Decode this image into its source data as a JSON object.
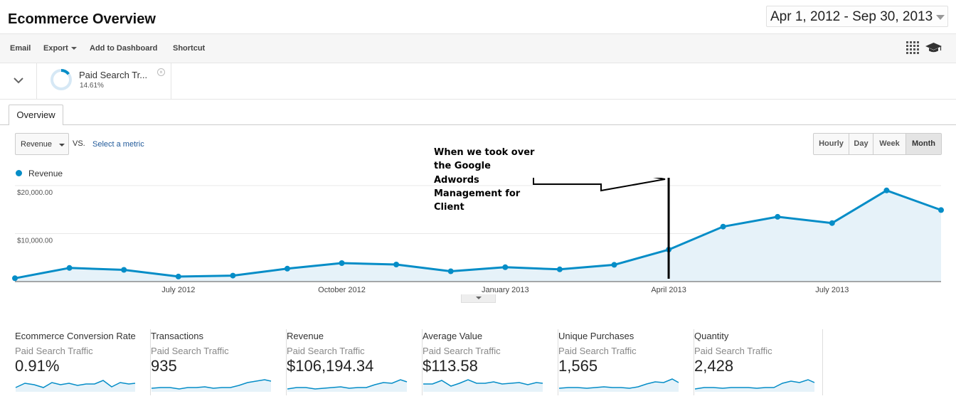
{
  "header": {
    "title": "Ecommerce Overview",
    "date_range": "Apr 1, 2012 - Sep 30, 2013"
  },
  "toolbar": {
    "email": "Email",
    "export": "Export",
    "add_to_dashboard": "Add to Dashboard",
    "shortcut": "Shortcut"
  },
  "segment": {
    "label": "Paid Search Tr...",
    "percent": "14.61%",
    "fraction": 0.1461
  },
  "tabs": {
    "overview": "Overview"
  },
  "controls": {
    "metric": "Revenue",
    "vs": "VS.",
    "select_metric": "Select a metric",
    "periods": [
      "Hourly",
      "Day",
      "Week",
      "Month"
    ],
    "active_period": "Month"
  },
  "annotation": {
    "lines": [
      "When we took over",
      "the Google",
      "Adwords",
      "Management for",
      "Client"
    ]
  },
  "colors": {
    "series": "#058dc7",
    "area": "#e6f2f9",
    "link": "#215a9a"
  },
  "chart_data": {
    "type": "area",
    "legend": "Revenue",
    "x": [
      "2012-04",
      "2012-05",
      "2012-06",
      "2012-07",
      "2012-08",
      "2012-09",
      "2012-10",
      "2012-11",
      "2012-12",
      "2013-01",
      "2013-02",
      "2013-03",
      "2013-04",
      "2013-05",
      "2013-06",
      "2013-07",
      "2013-08",
      "2013-09"
    ],
    "series": [
      {
        "name": "Revenue",
        "values": [
          700,
          2850,
          2450,
          1050,
          1250,
          2700,
          3850,
          3550,
          2150,
          3000,
          2550,
          3500,
          6650,
          11450,
          13500,
          12200,
          19000,
          14900
        ]
      }
    ],
    "x_tick_labels": [
      "July 2012",
      "October 2012",
      "January 2013",
      "April 2013",
      "July 2013"
    ],
    "y_tick_labels": [
      "$20,000.00",
      "$10,000.00"
    ],
    "y_ticks": [
      20000,
      10000
    ],
    "ylim": [
      0,
      20000
    ],
    "grid": true,
    "marker_line_at": "2013-04"
  },
  "stats": [
    {
      "name": "Ecommerce Conversion Rate",
      "segment": "Paid Search Traffic",
      "value": "0.91%"
    },
    {
      "name": "Transactions",
      "segment": "Paid Search Traffic",
      "value": "935"
    },
    {
      "name": "Revenue",
      "segment": "Paid Search Traffic",
      "value": "$106,194.34"
    },
    {
      "name": "Average Value",
      "segment": "Paid Search Traffic",
      "value": "$113.58"
    },
    {
      "name": "Unique Purchases",
      "segment": "Paid Search Traffic",
      "value": "1,565"
    },
    {
      "name": "Quantity",
      "segment": "Paid Search Traffic",
      "value": "2,428"
    }
  ]
}
